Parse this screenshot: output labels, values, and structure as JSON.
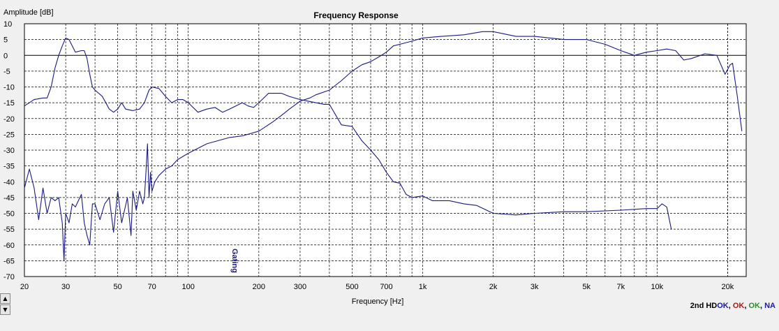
{
  "chart_data": {
    "type": "line",
    "title": "Frequency Response",
    "xlabel": "Frequency [Hz]",
    "ylabel": "Amplitude [dB]",
    "x_scale": "log",
    "xlim": [
      20,
      24000
    ],
    "ylim": [
      -70,
      10
    ],
    "grid": true,
    "x_tick_labels": [
      {
        "value": 20,
        "label": "20"
      },
      {
        "value": 30,
        "label": "30"
      },
      {
        "value": 50,
        "label": "50"
      },
      {
        "value": 70,
        "label": "70"
      },
      {
        "value": 100,
        "label": "100"
      },
      {
        "value": 200,
        "label": "200"
      },
      {
        "value": 300,
        "label": "300"
      },
      {
        "value": 500,
        "label": "500"
      },
      {
        "value": 700,
        "label": "700"
      },
      {
        "value": 1000,
        "label": "1k"
      },
      {
        "value": 2000,
        "label": "2k"
      },
      {
        "value": 3000,
        "label": "3k"
      },
      {
        "value": 5000,
        "label": "5k"
      },
      {
        "value": 7000,
        "label": "7k"
      },
      {
        "value": 10000,
        "label": "10k"
      },
      {
        "value": 20000,
        "label": "20k"
      }
    ],
    "y_ticks": [
      10,
      5,
      0,
      -5,
      -10,
      -15,
      -20,
      -25,
      -30,
      -35,
      -40,
      -45,
      -50,
      -55,
      -60,
      -65,
      -70
    ],
    "annotation": {
      "text": "Gating",
      "x": 150
    },
    "series": [
      {
        "color": "#1a1a80",
        "points": [
          [
            20,
            -16
          ],
          [
            21,
            -15
          ],
          [
            22,
            -14
          ],
          [
            24,
            -13.5
          ],
          [
            25,
            -13.5
          ],
          [
            26,
            -10
          ],
          [
            27,
            -4
          ],
          [
            28,
            0
          ],
          [
            29,
            3
          ],
          [
            30,
            5.5
          ],
          [
            31,
            5
          ],
          [
            32,
            3
          ],
          [
            33,
            1
          ],
          [
            35,
            1.5
          ],
          [
            36,
            1.5
          ],
          [
            37,
            -1
          ],
          [
            38,
            -6
          ],
          [
            39,
            -10
          ],
          [
            40,
            -11
          ],
          [
            43,
            -13
          ],
          [
            46,
            -17
          ],
          [
            48,
            -18
          ],
          [
            50,
            -17
          ],
          [
            52,
            -15
          ],
          [
            54,
            -17
          ],
          [
            58,
            -17.5
          ],
          [
            62,
            -17
          ],
          [
            65,
            -15
          ],
          [
            68,
            -11
          ],
          [
            70,
            -10
          ],
          [
            75,
            -10.5
          ],
          [
            80,
            -13
          ],
          [
            85,
            -15
          ],
          [
            90,
            -14
          ],
          [
            95,
            -14
          ],
          [
            100,
            -15
          ],
          [
            110,
            -18
          ],
          [
            120,
            -17
          ],
          [
            130,
            -16.5
          ],
          [
            140,
            -18
          ],
          [
            150,
            -17
          ],
          [
            170,
            -15
          ],
          [
            180,
            -16
          ],
          [
            190,
            -16.5
          ],
          [
            200,
            -15
          ],
          [
            220,
            -12
          ],
          [
            250,
            -12
          ],
          [
            270,
            -13
          ],
          [
            300,
            -14
          ],
          [
            350,
            -15
          ],
          [
            380,
            -15.5
          ],
          [
            400,
            -15.5
          ],
          [
            450,
            -22
          ],
          [
            500,
            -22.5
          ],
          [
            550,
            -27
          ],
          [
            600,
            -30
          ],
          [
            650,
            -33
          ],
          [
            700,
            -37
          ],
          [
            750,
            -40
          ],
          [
            800,
            -40.5
          ],
          [
            850,
            -44
          ],
          [
            900,
            -45
          ],
          [
            1000,
            -44.5
          ],
          [
            1100,
            -46
          ],
          [
            1300,
            -46
          ],
          [
            1500,
            -47
          ],
          [
            1700,
            -47.5
          ],
          [
            2000,
            -50
          ],
          [
            2500,
            -50.5
          ],
          [
            3000,
            -50
          ],
          [
            4000,
            -49.5
          ],
          [
            5000,
            -49.5
          ],
          [
            7000,
            -49
          ],
          [
            9000,
            -48.5
          ],
          [
            10000,
            -48.5
          ],
          [
            10500,
            -47
          ],
          [
            11000,
            -48
          ],
          [
            11500,
            -55
          ]
        ]
      },
      {
        "color": "#1a1a80",
        "points": [
          [
            20,
            -42
          ],
          [
            21,
            -36
          ],
          [
            22,
            -42
          ],
          [
            23,
            -52
          ],
          [
            24,
            -42
          ],
          [
            25,
            -50
          ],
          [
            26,
            -45
          ],
          [
            27,
            -46
          ],
          [
            28,
            -45
          ],
          [
            29,
            -53
          ],
          [
            29.5,
            -65
          ],
          [
            30,
            -50
          ],
          [
            31,
            -53
          ],
          [
            32,
            -47
          ],
          [
            33,
            -48
          ],
          [
            35,
            -44
          ],
          [
            36,
            -53
          ],
          [
            37,
            -57
          ],
          [
            38,
            -60
          ],
          [
            39,
            -47
          ],
          [
            40,
            -47
          ],
          [
            42,
            -52
          ],
          [
            44,
            -47
          ],
          [
            46,
            -45
          ],
          [
            48,
            -56
          ],
          [
            50,
            -43
          ],
          [
            52,
            -53
          ],
          [
            55,
            -45
          ],
          [
            57,
            -57
          ],
          [
            58,
            -43
          ],
          [
            60,
            -49
          ],
          [
            62,
            -43
          ],
          [
            64,
            -47
          ],
          [
            65,
            -45
          ],
          [
            66,
            -37
          ],
          [
            67,
            -28
          ],
          [
            68,
            -45
          ],
          [
            69,
            -37
          ],
          [
            70,
            -43
          ],
          [
            72,
            -40
          ],
          [
            75,
            -38
          ],
          [
            80,
            -36
          ],
          [
            85,
            -35
          ],
          [
            90,
            -33
          ],
          [
            100,
            -31
          ],
          [
            120,
            -28
          ],
          [
            150,
            -26
          ],
          [
            170,
            -25.5
          ],
          [
            200,
            -24
          ],
          [
            230,
            -21
          ],
          [
            250,
            -19
          ],
          [
            270,
            -17
          ],
          [
            300,
            -14.5
          ],
          [
            330,
            -13.5
          ],
          [
            350,
            -12.5
          ],
          [
            400,
            -11
          ],
          [
            450,
            -8
          ],
          [
            500,
            -5
          ],
          [
            550,
            -3
          ],
          [
            600,
            -2
          ],
          [
            650,
            -0.5
          ],
          [
            700,
            1
          ],
          [
            750,
            3
          ],
          [
            800,
            3.5
          ],
          [
            900,
            4.5
          ],
          [
            1000,
            5.5
          ],
          [
            1200,
            6
          ],
          [
            1500,
            6.5
          ],
          [
            1800,
            7.5
          ],
          [
            2000,
            7.5
          ],
          [
            2500,
            6
          ],
          [
            3000,
            6
          ],
          [
            4000,
            5
          ],
          [
            5000,
            5
          ],
          [
            6000,
            3.5
          ],
          [
            7000,
            1.5
          ],
          [
            8000,
            0
          ],
          [
            9000,
            1
          ],
          [
            10000,
            1.5
          ],
          [
            11000,
            2
          ],
          [
            12000,
            1.5
          ],
          [
            13000,
            -1.5
          ],
          [
            14000,
            -1
          ],
          [
            16000,
            0.5
          ],
          [
            18000,
            0
          ],
          [
            19500,
            -6
          ],
          [
            20500,
            -3
          ],
          [
            21000,
            -2.5
          ],
          [
            22000,
            -13
          ],
          [
            23000,
            -24
          ]
        ]
      }
    ]
  },
  "status": {
    "label": "2nd HD",
    "values": [
      {
        "text": "OK",
        "color": "#1a1a9c"
      },
      {
        "text": ", ",
        "color": "#000000"
      },
      {
        "text": "OK",
        "color": "#b11515"
      },
      {
        "text": ", ",
        "color": "#000000"
      },
      {
        "text": "OK",
        "color": "#2e8b2e"
      },
      {
        "text": ", ",
        "color": "#000000"
      },
      {
        "text": "NA",
        "color": "#1a1a9c"
      }
    ]
  },
  "scroll": {
    "up_icon": "▲",
    "down_icon": "▼"
  }
}
